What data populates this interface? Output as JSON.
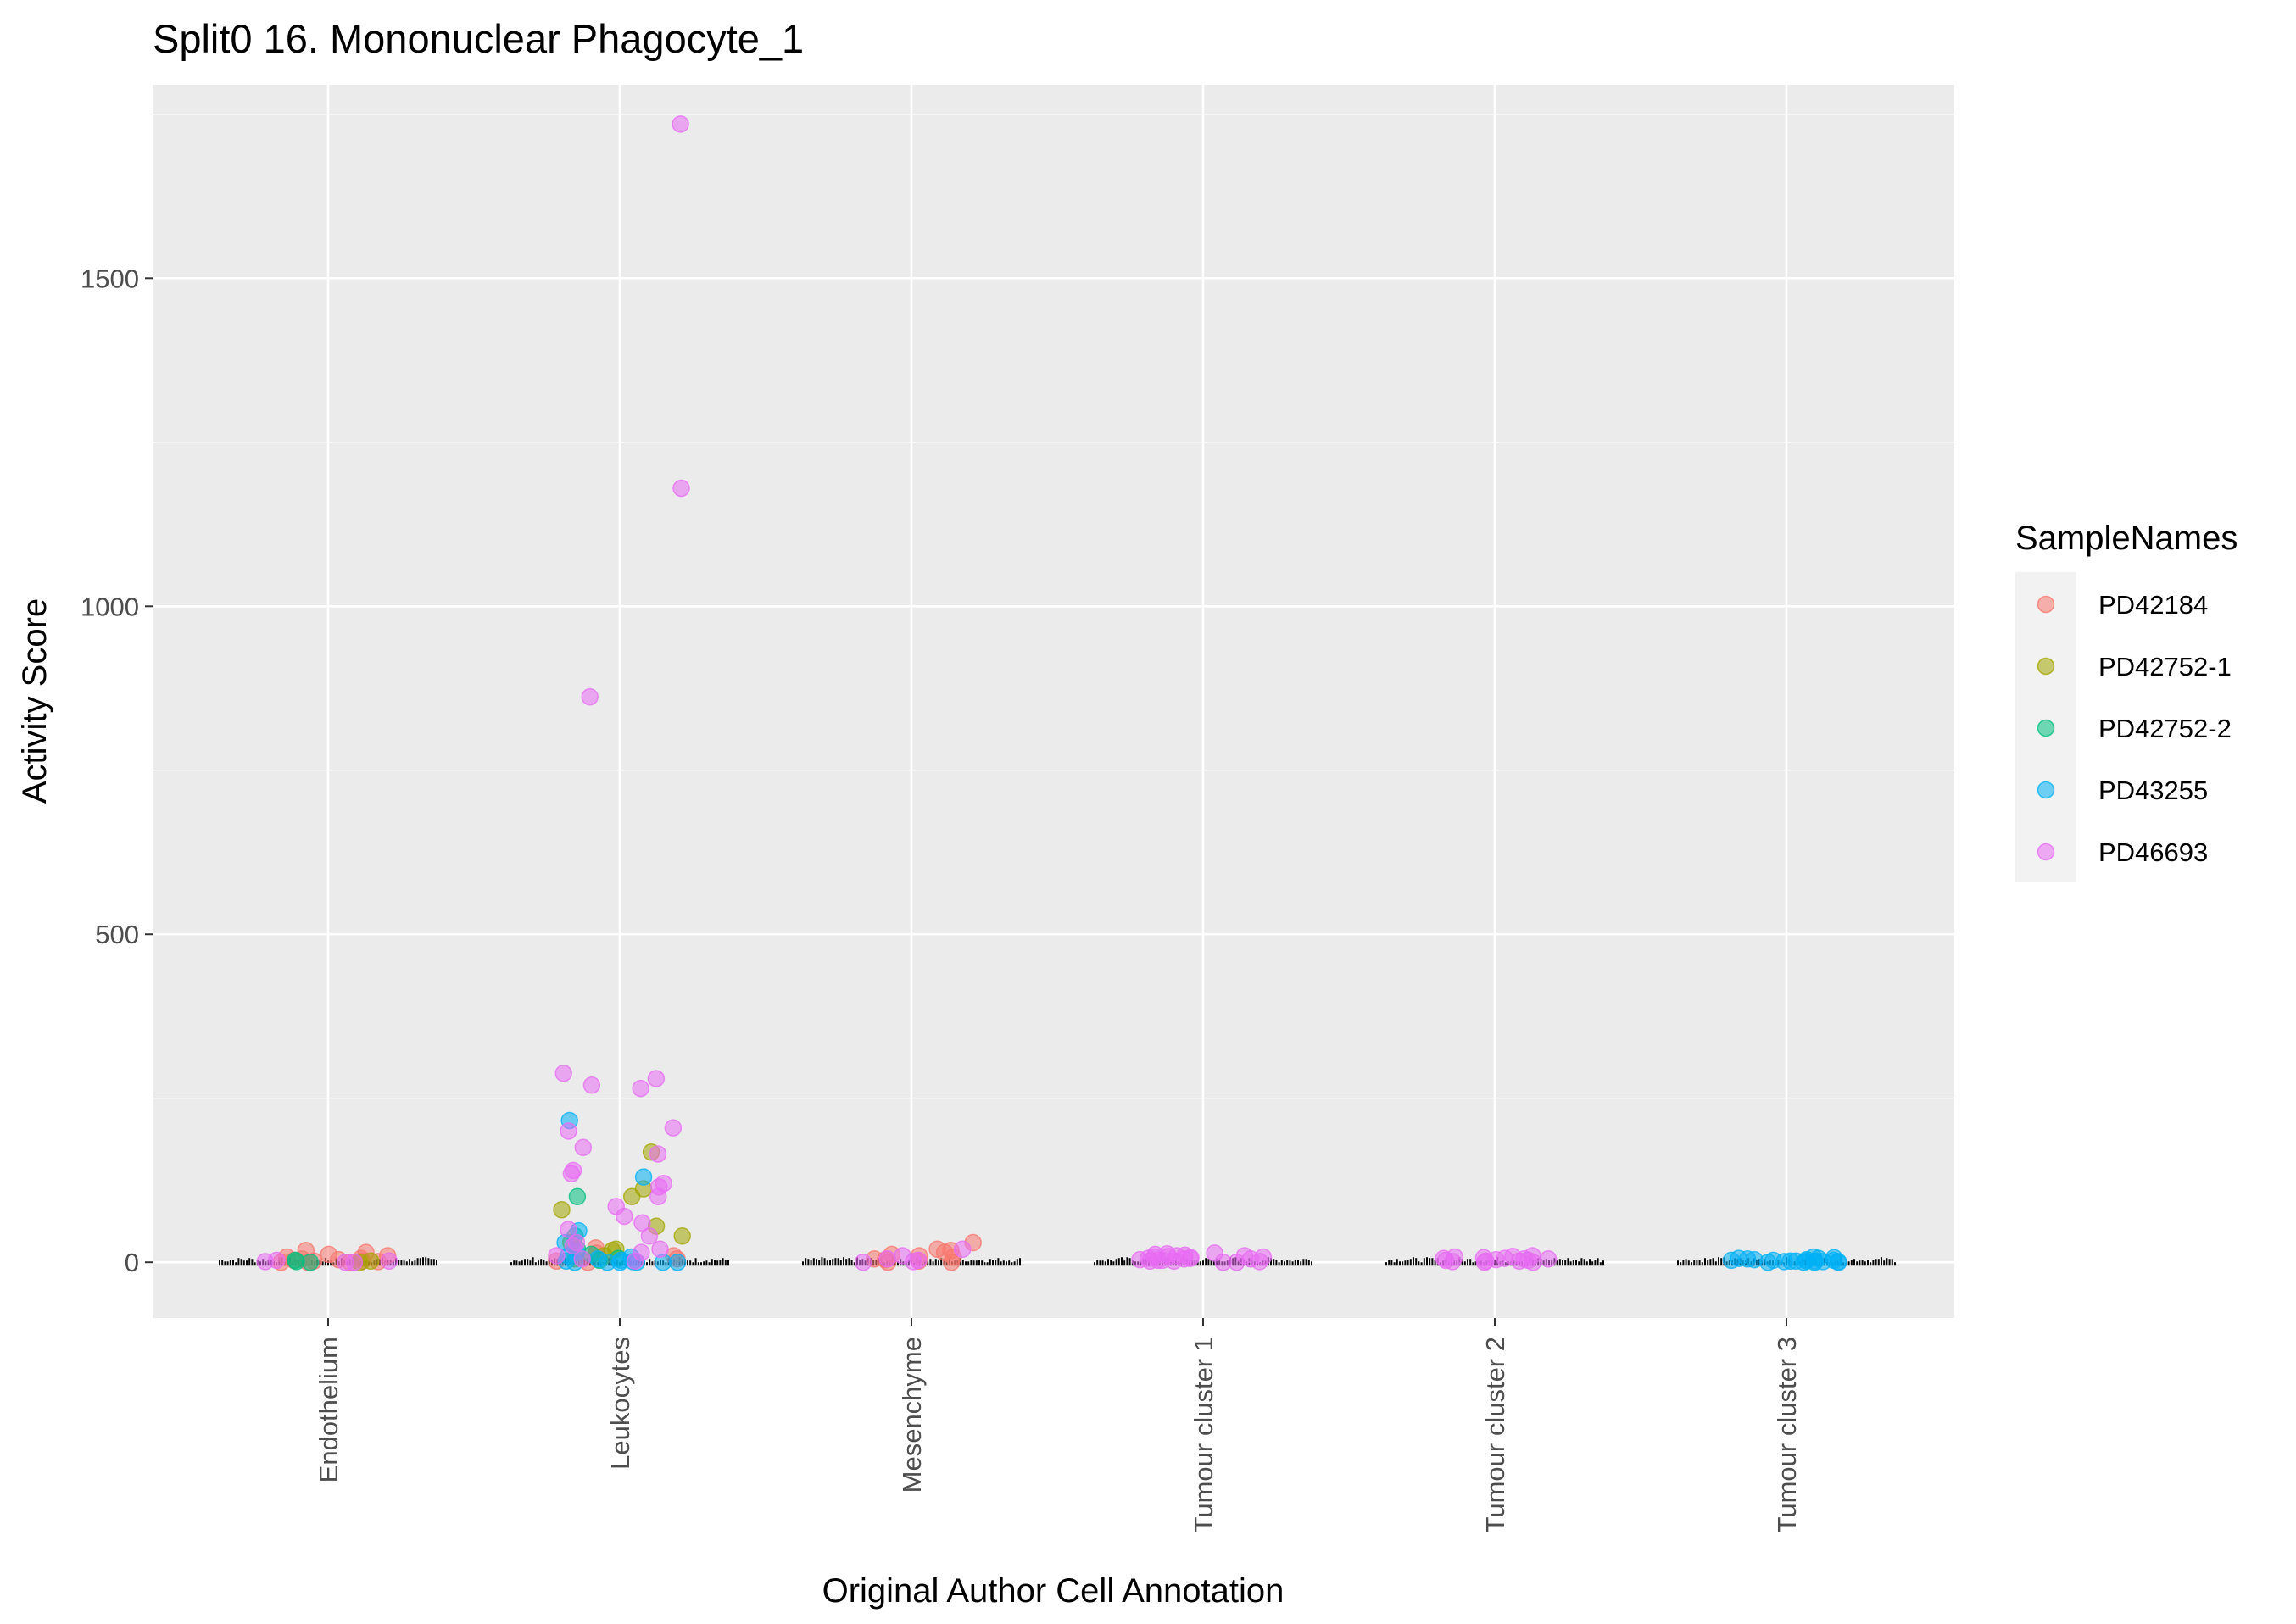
{
  "chart_data": {
    "type": "scatter",
    "title": "Split0 16. Mononuclear Phagocyte_1",
    "xlabel": "Original Author Cell Annotation",
    "ylabel": "Activity Score",
    "categories": [
      "Endothelium",
      "Leukocytes",
      "Mesenchyme",
      "Tumour cluster 1",
      "Tumour cluster 2",
      "Tumour cluster 3"
    ],
    "ylim": [
      -85,
      1795
    ],
    "yticks": [
      0,
      500,
      1000,
      1500
    ],
    "ytick_labels": [
      "0",
      "500",
      "1000",
      "1500"
    ],
    "grid": true,
    "legend": {
      "title": "SampleNames",
      "position": "right",
      "entries": [
        "PD42184",
        "PD42752-1",
        "PD42752-2",
        "PD43255",
        "PD46693"
      ]
    },
    "series": [
      {
        "name": "PD42184",
        "color": "#F8766D",
        "points": [
          [
            0,
            0
          ],
          [
            0,
            18
          ],
          [
            0,
            12
          ],
          [
            0,
            6
          ],
          [
            0,
            4
          ],
          [
            0,
            2
          ],
          [
            0,
            10
          ],
          [
            0,
            1
          ],
          [
            0,
            3
          ],
          [
            0,
            8
          ],
          [
            0,
            0
          ],
          [
            0,
            5
          ],
          [
            0,
            15
          ],
          [
            0,
            0
          ],
          [
            0,
            2
          ],
          [
            1,
            0
          ],
          [
            1,
            22
          ],
          [
            1,
            10
          ],
          [
            1,
            5
          ],
          [
            1,
            2
          ],
          [
            1,
            14
          ],
          [
            2,
            0
          ],
          [
            2,
            8
          ],
          [
            2,
            30
          ],
          [
            2,
            15
          ],
          [
            2,
            5
          ],
          [
            2,
            12
          ],
          [
            2,
            20
          ],
          [
            2,
            2
          ],
          [
            2,
            0
          ],
          [
            2,
            10
          ],
          [
            2,
            4
          ],
          [
            2,
            18
          ]
        ]
      },
      {
        "name": "PD42752-1",
        "color": "#A3A500",
        "points": [
          [
            0,
            0
          ],
          [
            0,
            2
          ],
          [
            1,
            168
          ],
          [
            1,
            112
          ],
          [
            1,
            100
          ],
          [
            1,
            80
          ],
          [
            1,
            55
          ],
          [
            1,
            40
          ],
          [
            1,
            30
          ],
          [
            1,
            20
          ],
          [
            1,
            18
          ],
          [
            1,
            10
          ],
          [
            1,
            5
          ]
        ]
      },
      {
        "name": "PD42752-2",
        "color": "#00BF7D",
        "points": [
          [
            0,
            0
          ],
          [
            0,
            1
          ],
          [
            0,
            3
          ],
          [
            1,
            100
          ],
          [
            1,
            40
          ],
          [
            1,
            20
          ],
          [
            1,
            12
          ],
          [
            1,
            6
          ],
          [
            1,
            3
          ]
        ]
      },
      {
        "name": "PD43255",
        "color": "#00B0F6",
        "points": [
          [
            1,
            216
          ],
          [
            1,
            130
          ],
          [
            1,
            48
          ],
          [
            1,
            30
          ],
          [
            1,
            15
          ],
          [
            1,
            10
          ],
          [
            1,
            8
          ],
          [
            1,
            5
          ],
          [
            1,
            3
          ],
          [
            1,
            2
          ],
          [
            1,
            1
          ],
          [
            1,
            0
          ],
          [
            1,
            0
          ],
          [
            1,
            0
          ],
          [
            1,
            0
          ],
          [
            1,
            0
          ],
          [
            1,
            0
          ],
          [
            5,
            0
          ],
          [
            5,
            2
          ],
          [
            5,
            4
          ],
          [
            5,
            1
          ],
          [
            5,
            3
          ],
          [
            5,
            6
          ],
          [
            5,
            0
          ],
          [
            5,
            2
          ],
          [
            5,
            5
          ],
          [
            5,
            1
          ],
          [
            5,
            8
          ],
          [
            5,
            3
          ],
          [
            5,
            0
          ],
          [
            5,
            4
          ],
          [
            5,
            2
          ],
          [
            5,
            6
          ],
          [
            5,
            1
          ],
          [
            5,
            0
          ],
          [
            5,
            3
          ],
          [
            5,
            7
          ],
          [
            5,
            2
          ]
        ]
      },
      {
        "name": "PD46693",
        "color": "#E76BF3",
        "points": [
          [
            0,
            0
          ],
          [
            0,
            2
          ],
          [
            0,
            1
          ],
          [
            0,
            3
          ],
          [
            0,
            0
          ],
          [
            1,
            1735
          ],
          [
            1,
            1180
          ],
          [
            1,
            862
          ],
          [
            1,
            288
          ],
          [
            1,
            280
          ],
          [
            1,
            270
          ],
          [
            1,
            265
          ],
          [
            1,
            205
          ],
          [
            1,
            200
          ],
          [
            1,
            175
          ],
          [
            1,
            165
          ],
          [
            1,
            140
          ],
          [
            1,
            135
          ],
          [
            1,
            120
          ],
          [
            1,
            115
          ],
          [
            1,
            100
          ],
          [
            1,
            85
          ],
          [
            1,
            70
          ],
          [
            1,
            60
          ],
          [
            1,
            50
          ],
          [
            1,
            40
          ],
          [
            1,
            30
          ],
          [
            1,
            25
          ],
          [
            1,
            20
          ],
          [
            1,
            15
          ],
          [
            1,
            10
          ],
          [
            1,
            5
          ],
          [
            1,
            2
          ],
          [
            2,
            0
          ],
          [
            2,
            5
          ],
          [
            2,
            10
          ],
          [
            2,
            20
          ],
          [
            2,
            3
          ],
          [
            2,
            1
          ],
          [
            3,
            0
          ],
          [
            3,
            5
          ],
          [
            3,
            10
          ],
          [
            3,
            12
          ],
          [
            3,
            8
          ],
          [
            3,
            3
          ],
          [
            3,
            6
          ],
          [
            3,
            2
          ],
          [
            3,
            14
          ],
          [
            3,
            4
          ],
          [
            3,
            9
          ],
          [
            3,
            1
          ],
          [
            3,
            11
          ],
          [
            3,
            7
          ],
          [
            3,
            0
          ],
          [
            3,
            5
          ],
          [
            3,
            13
          ],
          [
            3,
            3
          ],
          [
            3,
            8
          ],
          [
            3,
            2
          ],
          [
            3,
            10
          ],
          [
            3,
            6
          ],
          [
            4,
            0
          ],
          [
            4,
            3
          ],
          [
            4,
            6
          ],
          [
            4,
            9
          ],
          [
            4,
            2
          ],
          [
            4,
            5
          ],
          [
            4,
            1
          ],
          [
            4,
            8
          ],
          [
            4,
            4
          ],
          [
            4,
            7
          ],
          [
            4,
            0
          ],
          [
            4,
            3
          ],
          [
            4,
            10
          ],
          [
            4,
            2
          ],
          [
            4,
            6
          ],
          [
            4,
            5
          ]
        ]
      }
    ]
  }
}
